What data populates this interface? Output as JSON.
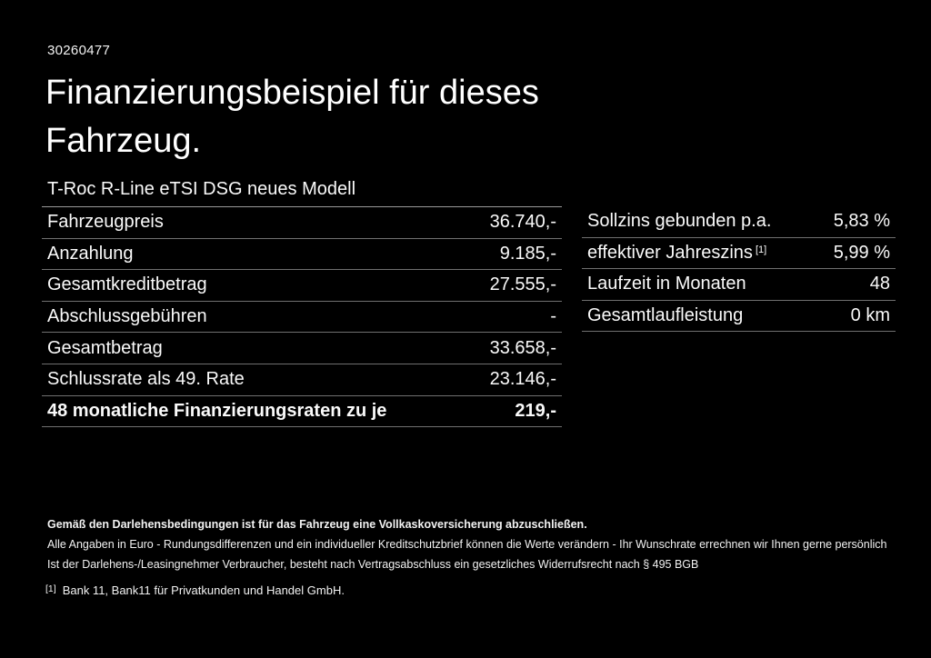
{
  "page": {
    "background_color": "#000000",
    "text_color": "#ffffff",
    "divider_color": "#707070",
    "table_top_border_color": "#9a9a9a"
  },
  "header": {
    "doc_number": "30260477",
    "title_lines": [
      "Finanzierungsbeispiel für dieses",
      "Fahrzeug."
    ],
    "subtitle": "T-Roc R-Line eTSI DSG neues Modell"
  },
  "finance_table": {
    "rows": [
      {
        "label": "Fahrzeugpreis",
        "value": "36.740,-",
        "bold": false
      },
      {
        "label": "Anzahlung",
        "value": "9.185,-",
        "bold": false
      },
      {
        "label": "Gesamtkreditbetrag",
        "value": "27.555,-",
        "bold": false
      },
      {
        "label": "Abschlussgebühren",
        "value": "-",
        "bold": false
      },
      {
        "label": "Gesamtbetrag",
        "value": "33.658,-",
        "bold": false
      },
      {
        "label": "Schlussrate als 49. Rate",
        "value": "23.146,-",
        "bold": false
      },
      {
        "label": "48 monatliche Finanzierungsraten zu je",
        "value": "219,-",
        "bold": true
      }
    ]
  },
  "conditions_table": {
    "rows": [
      {
        "label": "Sollzins gebunden p.a.",
        "superscript": "",
        "value": "5,83 %"
      },
      {
        "label": "effektiver Jahreszins",
        "superscript": "[1]",
        "value": "5,99 %"
      },
      {
        "label": "Laufzeit in Monaten",
        "superscript": "",
        "value": "48"
      },
      {
        "label": "Gesamtlaufleistung",
        "superscript": "",
        "value": "0 km"
      }
    ]
  },
  "footnotes": {
    "insurance_note": "Gemäß den Darlehensbedingungen ist für das Fahrzeug eine Vollkaskoversicherung abzuschließen.",
    "disclaimer_line1": "Alle Angaben in Euro - Rundungsdifferenzen und ein individueller Kreditschutzbrief können die Werte verändern - Ihr Wunschrate errechnen wir Ihnen gerne persönlich",
    "disclaimer_line2": "Ist der Darlehens-/Leasingnehmer Verbraucher, besteht nach Vertragsabschluss ein gesetzliches Widerrufsrecht nach § 495 BGB",
    "reference_marker": "[1]",
    "reference_text": "Bank 11, Bank11 für Privatkunden und Handel GmbH."
  }
}
